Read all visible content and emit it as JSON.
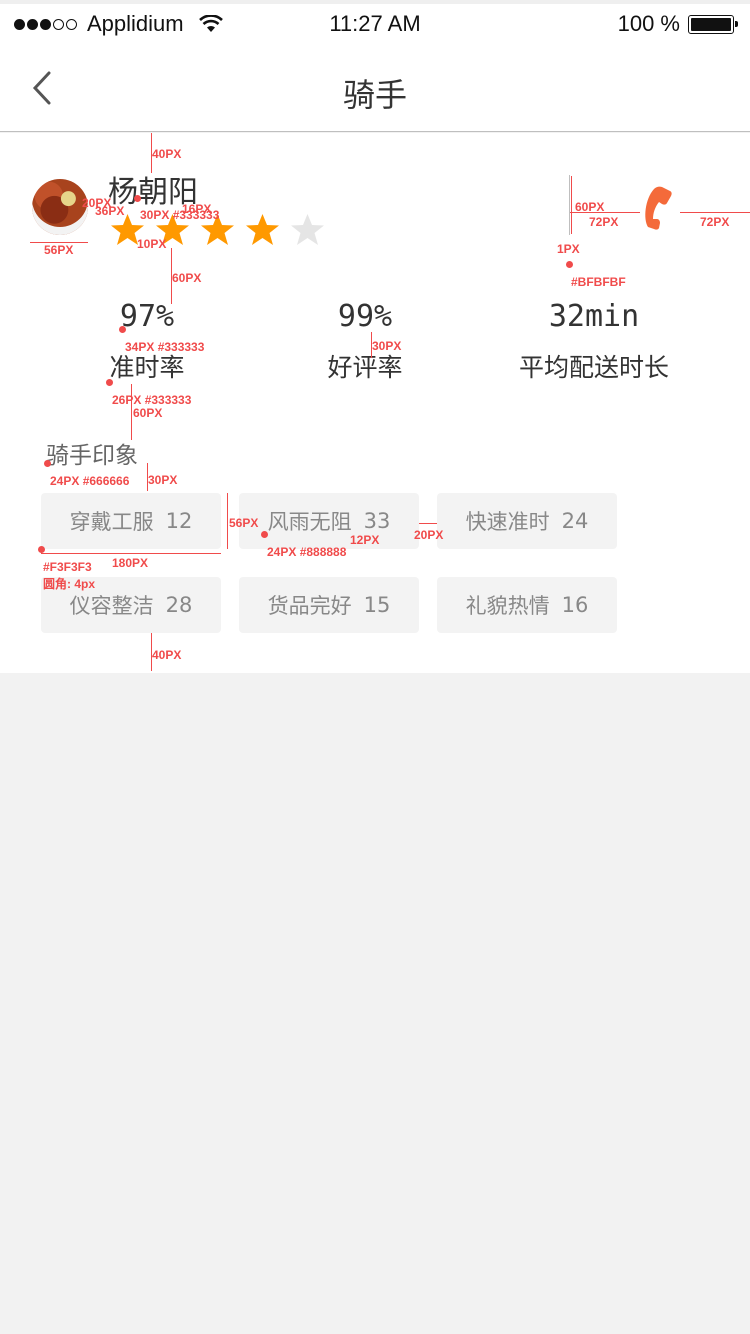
{
  "status_bar": {
    "signal_dots": [
      true,
      true,
      true,
      false,
      false
    ],
    "carrier": "Applidium",
    "time": "11:27 AM",
    "battery": "100 %"
  },
  "nav": {
    "title": "骑手",
    "back_icon": "chevron-left-icon"
  },
  "rider": {
    "name": "杨朝阳",
    "rating": 4,
    "rating_max": 5,
    "star_color": "#FF9900",
    "star_empty_color": "#E5E5E5",
    "phone_icon": "phone-icon",
    "phone_color": "#F46A3A"
  },
  "stats": [
    {
      "value": "97%",
      "label": "准时率"
    },
    {
      "value": "99%",
      "label": "好评率"
    },
    {
      "value": "32min",
      "label": "平均配送时长"
    }
  ],
  "impression": {
    "title": "骑手印象",
    "tags": [
      {
        "label": "穿戴工服",
        "count": "12"
      },
      {
        "label": "风雨无阻",
        "count": "33"
      },
      {
        "label": "快速准时",
        "count": "24"
      },
      {
        "label": "仪容整洁",
        "count": "28"
      },
      {
        "label": "货品完好",
        "count": "15"
      },
      {
        "label": "礼貌热情",
        "count": "16"
      }
    ]
  },
  "annotations": {
    "a1": "40PX",
    "a2": "20PX",
    "a3": "36PX",
    "a4": "30PX #333333",
    "a5": "16PX",
    "a6": "10PX",
    "a7": "56PX",
    "a8": "60PX",
    "a9": "60PX",
    "a10": "72PX",
    "a11": "72PX",
    "a12": "1PX",
    "a13": "#BFBFBF",
    "a14": "34PX #333333",
    "a15": "30PX",
    "a16": "26PX #333333",
    "a17": "60PX",
    "a18": "24PX #666666",
    "a19": "30PX",
    "a20": "56PX",
    "a21": "24PX #888888",
    "a22": "12PX",
    "a23": "20PX",
    "a24": "#F3F3F3",
    "a25": "圆角: 4px",
    "a26": "180PX",
    "a27": "40PX"
  }
}
